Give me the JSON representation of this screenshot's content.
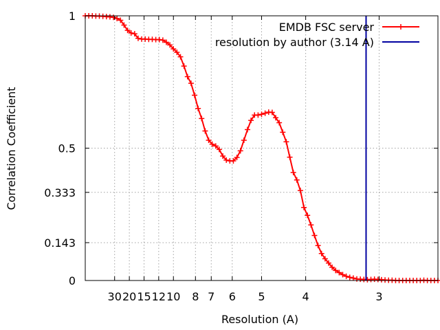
{
  "chart_data": {
    "type": "line",
    "xlabel": "Resolution (A)",
    "ylabel": "Correlation Coefficient",
    "x_unit": "1/Å",
    "xlim": [
      0.0,
      0.4
    ],
    "ylim": [
      0,
      1
    ],
    "grid": true,
    "legend_position": "top-right",
    "x_ticks": [
      {
        "label": "30",
        "value": 0.0333
      },
      {
        "label": "20",
        "value": 0.05
      },
      {
        "label": "15",
        "value": 0.0667
      },
      {
        "label": "12",
        "value": 0.0833
      },
      {
        "label": "10",
        "value": 0.1
      },
      {
        "label": "8",
        "value": 0.125
      },
      {
        "label": "7",
        "value": 0.1429
      },
      {
        "label": "6",
        "value": 0.1667
      },
      {
        "label": "5",
        "value": 0.2
      },
      {
        "label": "4",
        "value": 0.25
      },
      {
        "label": "3",
        "value": 0.3333
      }
    ],
    "y_ticks": [
      {
        "label": "0",
        "value": 0
      },
      {
        "label": "0.143",
        "value": 0.143
      },
      {
        "label": "0.333",
        "value": 0.333
      },
      {
        "label": "0.5",
        "value": 0.5
      },
      {
        "label": "1",
        "value": 1
      }
    ],
    "series": [
      {
        "name": "EMDB FSC server",
        "color": "#ff0000",
        "marker": "plus",
        "x": [
          0.0,
          0.004,
          0.008,
          0.012,
          0.016,
          0.02,
          0.024,
          0.028,
          0.032,
          0.036,
          0.04,
          0.044,
          0.048,
          0.052,
          0.056,
          0.06,
          0.064,
          0.068,
          0.072,
          0.076,
          0.08,
          0.084,
          0.088,
          0.092,
          0.096,
          0.1,
          0.104,
          0.108,
          0.112,
          0.116,
          0.12,
          0.124,
          0.128,
          0.132,
          0.136,
          0.14,
          0.144,
          0.148,
          0.152,
          0.156,
          0.16,
          0.164,
          0.168,
          0.172,
          0.176,
          0.18,
          0.184,
          0.188,
          0.192,
          0.196,
          0.2,
          0.204,
          0.208,
          0.212,
          0.216,
          0.22,
          0.224,
          0.228,
          0.232,
          0.236,
          0.24,
          0.244,
          0.248,
          0.252,
          0.256,
          0.26,
          0.264,
          0.268,
          0.272,
          0.276,
          0.28,
          0.284,
          0.288,
          0.292,
          0.296,
          0.3,
          0.304,
          0.308,
          0.312,
          0.316,
          0.32,
          0.324,
          0.328,
          0.332,
          0.336,
          0.34,
          0.344,
          0.348,
          0.352,
          0.356,
          0.36,
          0.364,
          0.368,
          0.372,
          0.376,
          0.38,
          0.384,
          0.388,
          0.392,
          0.396,
          0.4
        ],
        "y": [
          1.0,
          1.0,
          1.0,
          0.999,
          0.999,
          0.998,
          0.997,
          0.996,
          0.994,
          0.99,
          0.983,
          0.965,
          0.945,
          0.935,
          0.932,
          0.915,
          0.912,
          0.912,
          0.911,
          0.911,
          0.91,
          0.91,
          0.908,
          0.9,
          0.89,
          0.875,
          0.862,
          0.845,
          0.81,
          0.77,
          0.745,
          0.7,
          0.65,
          0.612,
          0.565,
          0.53,
          0.515,
          0.508,
          0.495,
          0.47,
          0.455,
          0.452,
          0.452,
          0.465,
          0.49,
          0.53,
          0.57,
          0.605,
          0.625,
          0.625,
          0.628,
          0.632,
          0.636,
          0.635,
          0.615,
          0.596,
          0.56,
          0.524,
          0.466,
          0.408,
          0.38,
          0.34,
          0.276,
          0.246,
          0.21,
          0.17,
          0.132,
          0.102,
          0.082,
          0.066,
          0.05,
          0.038,
          0.03,
          0.022,
          0.016,
          0.012,
          0.009,
          0.006,
          0.005,
          0.004,
          0.003,
          0.004,
          0.005,
          0.004,
          0.003,
          0.002,
          0.001,
          0.001,
          0.0,
          0.0,
          0.0,
          0.0,
          0.0,
          0.0,
          0.0,
          0.0,
          0.001,
          0.0,
          0.0,
          0.0,
          0.0
        ]
      },
      {
        "name": "resolution by author (3.14 A)",
        "color": "#0000a0",
        "type": "vline",
        "x_value": 0.3185
      }
    ]
  }
}
